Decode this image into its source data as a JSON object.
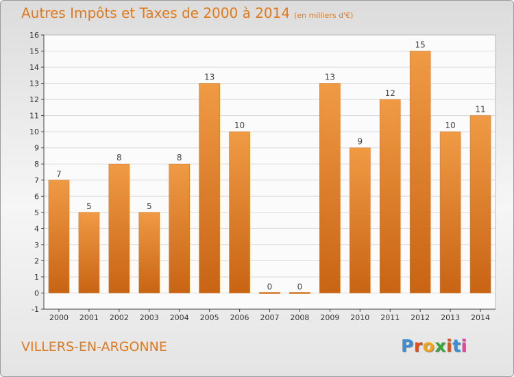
{
  "title": "Autres Impôts et Taxes de 2000 à 2014",
  "subtitle": "(en milliers d'€)",
  "place": "VILLERS-EN-ARGONNE",
  "brand": {
    "letters": [
      "P",
      "r",
      "o",
      "x",
      "i",
      "t",
      "i"
    ],
    "colors": [
      "#3a8fd6",
      "#e0501a",
      "#f2a418",
      "#3aa838",
      "#e0501a",
      "#3a8fd6",
      "#e04a9a"
    ]
  },
  "colors": {
    "bar": "#f09a44",
    "bar_dark": "#c86414",
    "text": "#e07a1e",
    "axis": "#444444"
  },
  "chart_data": {
    "type": "bar",
    "categories": [
      "2000",
      "2001",
      "2002",
      "2003",
      "2004",
      "2005",
      "2006",
      "2007",
      "2008",
      "2009",
      "2010",
      "2011",
      "2012",
      "2013",
      "2014"
    ],
    "values": [
      7,
      5,
      8,
      5,
      8,
      13,
      10,
      0,
      0,
      13,
      9,
      12,
      15,
      10,
      11
    ],
    "ylim": [
      -1,
      16
    ],
    "yticks": [
      -1,
      0,
      1,
      2,
      3,
      4,
      5,
      6,
      7,
      8,
      9,
      10,
      11,
      12,
      13,
      14,
      15,
      16
    ],
    "grid": true,
    "title": "Autres Impôts et Taxes de 2000 à 2014",
    "xlabel": "",
    "ylabel": ""
  }
}
